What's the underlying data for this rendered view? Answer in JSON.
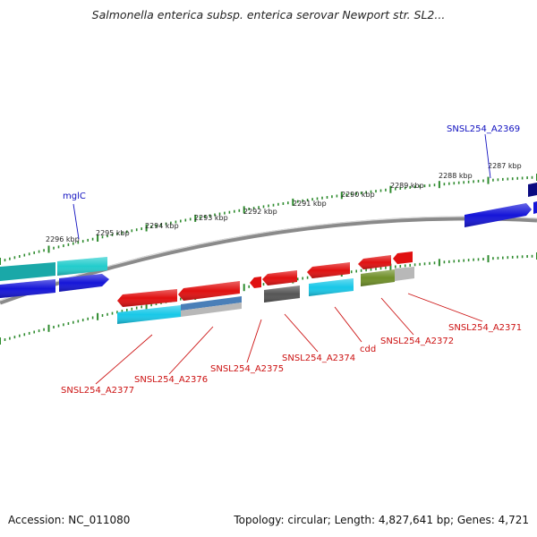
{
  "title": "Salmonella enterica subsp. enterica serovar Newport str. SL2...",
  "footer": {
    "accession": "Accession: NC_011080",
    "topology": "Topology: circular; Length: 4,827,641 bp; Genes: 4,721"
  },
  "colors": {
    "backbone": "#8a8a8a",
    "tick": "#2e8b2e",
    "red": "#e01010",
    "blue": "#1515d8",
    "cyan": "#18c8e8",
    "teal": "#22bcbc",
    "navy": "#0a0a80",
    "gray": "#909090",
    "olive": "#6f8f28",
    "steel": "#4a7fb8",
    "dark_gray": "#555555"
  },
  "scale_labels": [
    "2296 kbp",
    "2295 kbp",
    "2294 kbp",
    "2293 kbp",
    "2292 kbp",
    "2291 kbp",
    "2290 kbp",
    "2289 kbp",
    "2288 kbp",
    "2287 kbp"
  ],
  "gene_labels": {
    "mglC": "mglC",
    "SNSL254_A2369": "SNSL254_A2369",
    "SNSL254_A2371": "SNSL254_A2371",
    "SNSL254_A2372": "SNSL254_A2372",
    "cdd": "cdd",
    "SNSL254_A2374": "SNSL254_A2374",
    "SNSL254_A2375": "SNSL254_A2375",
    "SNSL254_A2376": "SNSL254_A2376",
    "SNSL254_A2377": "SNSL254_A2377"
  }
}
